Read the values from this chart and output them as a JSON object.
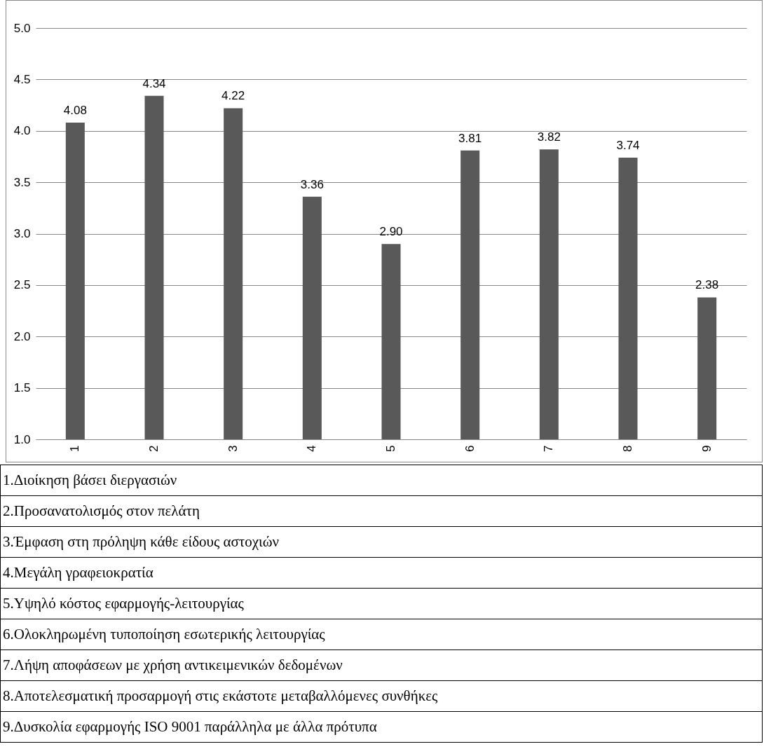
{
  "chart_data": {
    "type": "bar",
    "categories": [
      "1",
      "2",
      "3",
      "4",
      "5",
      "6",
      "7",
      "8",
      "9"
    ],
    "values": [
      4.08,
      4.34,
      4.22,
      3.36,
      2.9,
      3.81,
      3.82,
      3.74,
      2.38
    ],
    "value_labels": [
      "4.08",
      "4.34",
      "4.22",
      "3.36",
      "2.90",
      "3.81",
      "3.82",
      "3.74",
      "2.38"
    ],
    "color": "#595959",
    "ylim": [
      1,
      5
    ],
    "yticks": [
      {
        "value": 1,
        "label": "1.0"
      },
      {
        "value": 1.5,
        "label": "1.5"
      },
      {
        "value": 2,
        "label": "2.0"
      },
      {
        "value": 2.5,
        "label": "2.5"
      },
      {
        "value": 3,
        "label": "3.0"
      },
      {
        "value": 3.5,
        "label": "3.5"
      },
      {
        "value": 4,
        "label": "4.0"
      },
      {
        "value": 4.5,
        "label": "4.5"
      },
      {
        "value": 5,
        "label": "5.0"
      }
    ],
    "grid": "y",
    "annotations": [
      "1.Διοίκηση βάσει διεργασιών",
      "2.Προσανατολισμός στον πελάτη",
      "3.Έμφαση στη πρόληψη κάθε είδους αστοχιών",
      "4.Μεγάλη γραφειοκρατία",
      "5.Υψηλό κόστος εφαρμογής-λειτουργίας",
      "6.Ολοκληρωμένη τυποποίηση εσωτερικής λειτουργίας",
      "7.Λήψη αποφάσεων με χρήση αντικειμενικών δεδομένων",
      "8.Αποτελεσματική προσαρμογή στις εκάστοτε μεταβαλλόμενες συνθήκες",
      "9.Δυσκολία εφαρμογής ISO 9001 παράλληλα με άλλα πρότυπα"
    ]
  }
}
